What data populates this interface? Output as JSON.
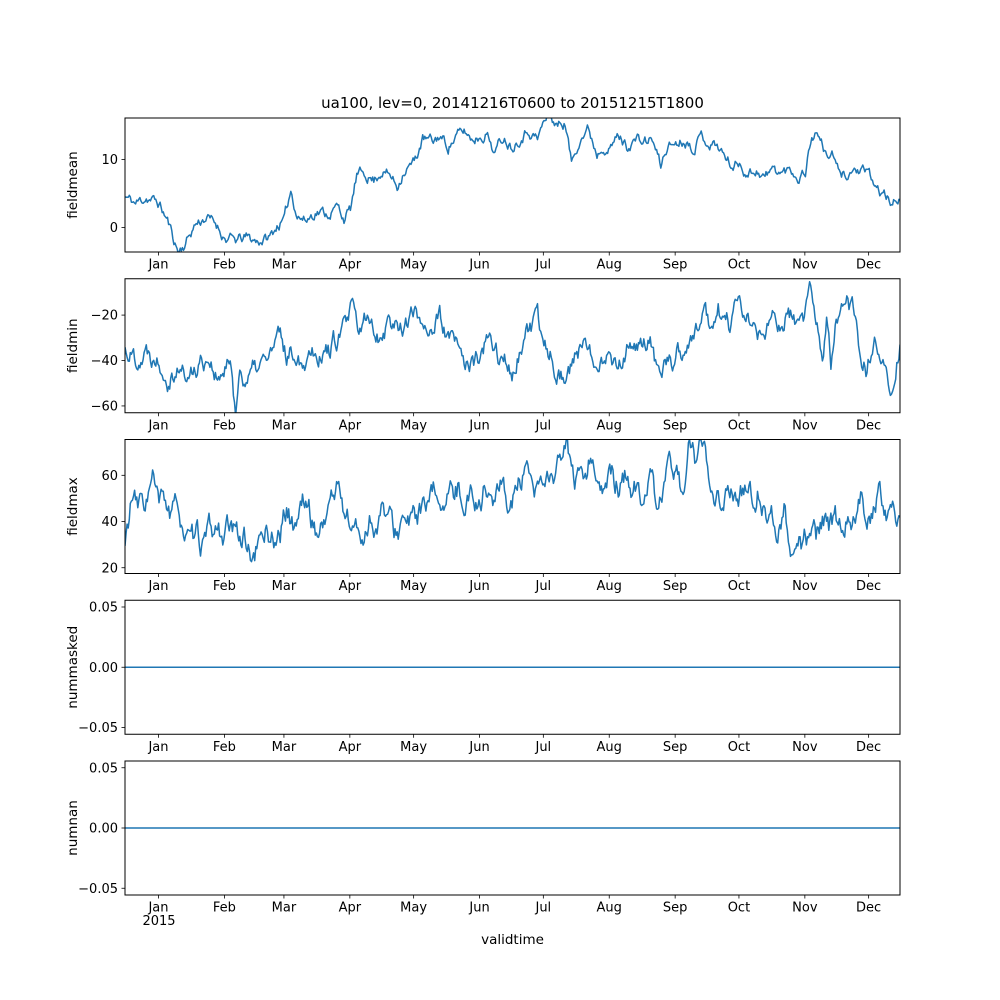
{
  "chart_data": {
    "type": "line",
    "title": "ua100, lev=0, 20141216T0600 to 20151215T1800",
    "xlabel": "validtime",
    "line_color": "#1f77b4",
    "grid": false,
    "legend": "none",
    "x_axis": {
      "start": "20141216T0600",
      "end": "20151215T1800",
      "total_days": 364.5,
      "tick_labels": [
        "Jan",
        "Feb",
        "Mar",
        "Apr",
        "May",
        "Jun",
        "Jul",
        "Aug",
        "Sep",
        "Oct",
        "Nov",
        "Dec"
      ],
      "tick_days": [
        15.75,
        46.75,
        74.75,
        105.75,
        135.75,
        166.75,
        196.75,
        227.75,
        258.75,
        288.75,
        319.75,
        349.75
      ],
      "year_label": "2015"
    },
    "subplots": [
      {
        "ylabel": "fieldmean",
        "ylim": [
          -3.6,
          16.1
        ],
        "yticks": [
          0,
          10
        ],
        "ytick_labels": [
          "0",
          "10"
        ],
        "noise_amp": 1.3,
        "seed": 11,
        "data": {
          "days": [
            0,
            5,
            10,
            16,
            20,
            25,
            28,
            33,
            38,
            43,
            47,
            52,
            57,
            62,
            68,
            72,
            75,
            78,
            81,
            85,
            90,
            95,
            100,
            103,
            106,
            109,
            113,
            117,
            121,
            125,
            128,
            131,
            136,
            140,
            145,
            148,
            152,
            156,
            160,
            163,
            167,
            170,
            174,
            178,
            182,
            186,
            190,
            194,
            197,
            200,
            203,
            207,
            210,
            214,
            218,
            222,
            225,
            228,
            232,
            236,
            240,
            244,
            248,
            252,
            255,
            259,
            263,
            267,
            271,
            275,
            279,
            283,
            286,
            289,
            293,
            297,
            301,
            305,
            309,
            313,
            317,
            320,
            323,
            326,
            329,
            333,
            336,
            340,
            344,
            347,
            350,
            354,
            358,
            361,
            364.5
          ],
          "values": [
            4.5,
            3.5,
            4.5,
            3.5,
            1,
            -3.5,
            -2.5,
            0.5,
            1.5,
            0.5,
            -1.5,
            -2,
            -1.5,
            -2,
            -1.5,
            0.5,
            1,
            5.5,
            2,
            1,
            2.5,
            2,
            3,
            1.5,
            2.5,
            7.5,
            8,
            7,
            8.5,
            7.5,
            6,
            8.5,
            9.5,
            13,
            12.5,
            13.5,
            12,
            13.5,
            14,
            13,
            13.5,
            14,
            11,
            13.5,
            12,
            13.5,
            14.5,
            13,
            15.5,
            16.5,
            15,
            15.5,
            9.5,
            13.5,
            14.5,
            11,
            12.5,
            11.5,
            13.5,
            12,
            13,
            12.5,
            13,
            9,
            12,
            12.5,
            13,
            12,
            13.5,
            12.5,
            12,
            10,
            9,
            9.5,
            8,
            8.5,
            7.5,
            8.5,
            8,
            8.5,
            7.5,
            8.5,
            13.5,
            14,
            11,
            10.5,
            7.5,
            8,
            8.5,
            8,
            7.5,
            5.5,
            4.5,
            3,
            5
          ]
        }
      },
      {
        "ylabel": "fieldmin",
        "ylim": [
          -63,
          -4
        ],
        "yticks": [
          -60,
          -40,
          -20
        ],
        "ytick_labels": [
          "−60",
          "−40",
          "−20"
        ],
        "noise_amp": 7.5,
        "seed": 22,
        "data": {
          "days": [
            0,
            5,
            10,
            16,
            20,
            25,
            30,
            35,
            40,
            44,
            47,
            50,
            52,
            54,
            58,
            62,
            66,
            70,
            73,
            76,
            80,
            84,
            88,
            92,
            96,
            100,
            104,
            107,
            110,
            113,
            116,
            120,
            124,
            128,
            132,
            136,
            140,
            144,
            148,
            152,
            156,
            160,
            164,
            167,
            170,
            174,
            178,
            182,
            186,
            190,
            194,
            197,
            200,
            204,
            208,
            212,
            216,
            220,
            224,
            228,
            232,
            236,
            240,
            244,
            248,
            252,
            255,
            259,
            263,
            267,
            270,
            273,
            276,
            279,
            282,
            285,
            288,
            292,
            296,
            300,
            304,
            308,
            312,
            316,
            319,
            322,
            324,
            326,
            328,
            330,
            332,
            334,
            337,
            340,
            343,
            346,
            349,
            352,
            355,
            358,
            361,
            364.5
          ],
          "values": [
            -35,
            -38,
            -36,
            -38,
            -45,
            -42,
            -48,
            -40,
            -38,
            -50,
            -45,
            -42,
            -61,
            -45,
            -48,
            -44,
            -40,
            -35,
            -30,
            -38,
            -35,
            -40,
            -33,
            -36,
            -35,
            -30,
            -25,
            -18,
            -30,
            -22,
            -25,
            -28,
            -22,
            -25,
            -23,
            -20,
            -22,
            -25,
            -22,
            -30,
            -35,
            -40,
            -43,
            -38,
            -33,
            -35,
            -40,
            -45,
            -35,
            -28,
            -25,
            -32,
            -35,
            -45,
            -47,
            -38,
            -35,
            -40,
            -35,
            -38,
            -42,
            -35,
            -38,
            -30,
            -35,
            -52,
            -42,
            -38,
            -35,
            -30,
            -25,
            -20,
            -25,
            -18,
            -22,
            -25,
            -15,
            -20,
            -25,
            -30,
            -25,
            -22,
            -20,
            -25,
            -22,
            -7,
            -20,
            -30,
            -45,
            -25,
            -45,
            -20,
            -18,
            -15,
            -20,
            -35,
            -45,
            -30,
            -35,
            -40,
            -52,
            -32
          ]
        }
      },
      {
        "ylabel": "fieldmax",
        "ylim": [
          17.5,
          75.5
        ],
        "yticks": [
          20,
          40,
          60
        ],
        "ytick_labels": [
          "20",
          "40",
          "60"
        ],
        "noise_amp": 9,
        "seed": 33,
        "data": {
          "days": [
            0,
            3,
            6,
            10,
            13,
            16,
            19,
            22,
            25,
            28,
            31,
            34,
            37,
            40,
            43,
            46,
            49,
            52,
            55,
            58,
            61,
            64,
            67,
            70,
            73,
            76,
            79,
            82,
            85,
            88,
            91,
            94,
            97,
            100,
            103,
            106,
            109,
            112,
            115,
            118,
            121,
            124,
            127,
            130,
            133,
            136,
            139,
            142,
            145,
            148,
            151,
            154,
            157,
            160,
            163,
            166,
            169,
            172,
            175,
            178,
            181,
            184,
            187,
            190,
            193,
            196,
            199,
            202,
            205,
            208,
            211,
            214,
            217,
            220,
            223,
            226,
            229,
            232,
            235,
            238,
            241,
            244,
            247,
            250,
            253,
            256,
            259,
            262,
            265,
            268,
            271,
            274,
            277,
            280,
            283,
            286,
            289,
            292,
            295,
            298,
            301,
            304,
            307,
            310,
            313,
            316,
            319,
            322,
            325,
            328,
            331,
            334,
            337,
            340,
            343,
            346,
            349,
            352,
            355,
            358,
            361,
            364.5
          ],
          "values": [
            29,
            50,
            45,
            50,
            58,
            45,
            50,
            40,
            48,
            35,
            28,
            32,
            30,
            35,
            36,
            35,
            36,
            33,
            35,
            30,
            22,
            35,
            36,
            33,
            35,
            45,
            38,
            45,
            50,
            40,
            35,
            42,
            50,
            55,
            45,
            40,
            35,
            33,
            42,
            38,
            45,
            40,
            35,
            40,
            38,
            40,
            45,
            43,
            50,
            52,
            48,
            50,
            55,
            50,
            52,
            48,
            55,
            50,
            52,
            55,
            48,
            52,
            58,
            55,
            50,
            55,
            60,
            55,
            65,
            72,
            58,
            55,
            60,
            72,
            55,
            52,
            58,
            55,
            60,
            52,
            55,
            50,
            55,
            48,
            52,
            60,
            62,
            55,
            70,
            65,
            76,
            60,
            55,
            50,
            55,
            52,
            48,
            55,
            50,
            55,
            45,
            42,
            38,
            45,
            32,
            30,
            28,
            35,
            32,
            38,
            35,
            42,
            38,
            45,
            40,
            50,
            42,
            45,
            55,
            40,
            48,
            42
          ]
        }
      },
      {
        "ylabel": "nummasked",
        "ylim": [
          -0.0556,
          0.0556
        ],
        "yticks": [
          -0.05,
          0,
          0.05
        ],
        "ytick_labels": [
          "−0.05",
          "0.00",
          "0.05"
        ],
        "noise_amp": 0,
        "seed": 44,
        "data": {
          "days": [
            0,
            364.5
          ],
          "values": [
            0,
            0
          ]
        }
      },
      {
        "ylabel": "numnan",
        "ylim": [
          -0.0556,
          0.0556
        ],
        "yticks": [
          -0.05,
          0,
          0.05
        ],
        "ytick_labels": [
          "−0.05",
          "0.00",
          "0.05"
        ],
        "noise_amp": 0,
        "seed": 55,
        "data": {
          "days": [
            0,
            364.5
          ],
          "values": [
            0,
            0
          ]
        }
      }
    ]
  }
}
